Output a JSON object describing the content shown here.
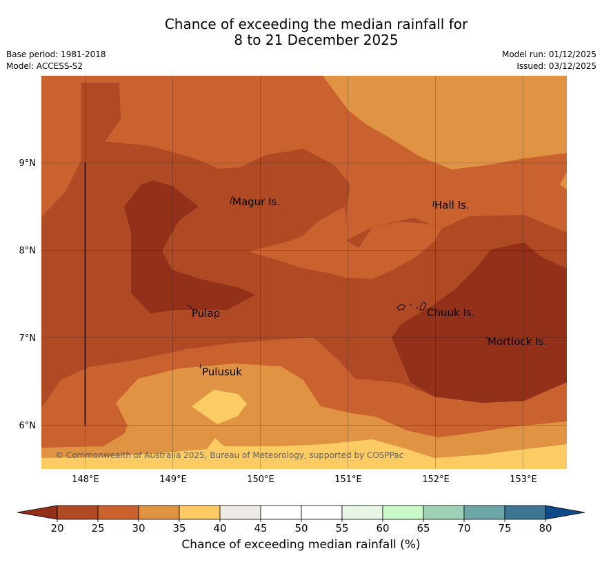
{
  "title": {
    "line1": "Chance of exceeding the median rainfall for",
    "line2": "8 to 21 December 2025"
  },
  "meta": {
    "base_period": "Base period: 1981-2018",
    "model": "Model: ACCESS-S2",
    "model_run": "Model run: 01/12/2025",
    "issued": "Issued: 03/12/2025"
  },
  "map": {
    "lon_ticks": [
      "148°E",
      "149°E",
      "150°E",
      "151°E",
      "152°E",
      "153°E"
    ],
    "lat_ticks": [
      "9°N",
      "8°N",
      "7°N",
      "6°N"
    ],
    "places": [
      {
        "name": "Magur Is."
      },
      {
        "name": "Hall Is."
      },
      {
        "name": "Pulap"
      },
      {
        "name": "Chuuk Is."
      },
      {
        "name": "Mortlock Is."
      },
      {
        "name": "Pulusuk"
      }
    ],
    "copyright": "© Commonwealth of Australia 2025, Bureau of Meteorology, supported by COSPPac"
  },
  "colorbar": {
    "ticks": [
      "20",
      "25",
      "30",
      "35",
      "40",
      "45",
      "50",
      "55",
      "60",
      "65",
      "70",
      "75",
      "80"
    ],
    "label": "Chance of exceeding median rainfall (%)",
    "colors": [
      "#B04A25",
      "#C9622F",
      "#DF9343",
      "#FDCB64",
      "#EEEAE6",
      "#FFFFFF",
      "#FFFFFF",
      "#E8F5E6",
      "#C9F9C9",
      "#9DD0B5",
      "#6EA6A7",
      "#3E7593"
    ],
    "under_color": "#933019",
    "over_color": "#0E4A88"
  },
  "palette": {
    "c20": "#933019",
    "c25": "#B04A25",
    "c30": "#C9622F",
    "c35": "#DF9343",
    "c40": "#FDCB64"
  }
}
